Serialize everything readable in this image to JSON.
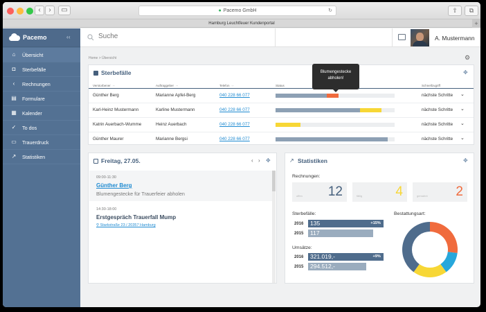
{
  "browser": {
    "url_title": "Pacemo GmbH",
    "tab_title": "Hamburg Leuchtfeuer Kundenportal",
    "back": "‹",
    "forward": "›",
    "reload": "↻",
    "new_tab": "+"
  },
  "sidebar": {
    "brand": "Pacemo",
    "collapse": "‹ ‹",
    "items": [
      {
        "label": "Übersicht",
        "icon": "home-icon",
        "glyph": "⌂"
      },
      {
        "label": "Sterbefälle",
        "icon": "person-icon",
        "glyph": "◘"
      },
      {
        "label": "Rechnungen",
        "icon": "chevron-left-icon",
        "glyph": "‹"
      },
      {
        "label": "Formulare",
        "icon": "form-icon",
        "glyph": "▤"
      },
      {
        "label": "Kalender",
        "icon": "calendar-icon",
        "glyph": "▦"
      },
      {
        "label": "To dos",
        "icon": "check-icon",
        "glyph": "✓"
      },
      {
        "label": "Trauerdruck",
        "icon": "printer-icon",
        "glyph": "▭"
      },
      {
        "label": "Statistiken",
        "icon": "trend-icon",
        "glyph": "↗"
      }
    ]
  },
  "header": {
    "search_placeholder": "Suche",
    "user_name": "A. Mustermann"
  },
  "breadcrumb": "Home  >  Übersicht",
  "sterbefaelle": {
    "title": "Sterbefälle",
    "columns": [
      "Verstorbener",
      "Auftraggeber",
      "Telefon",
      "Status",
      "Schnellzugriff"
    ],
    "sort_glyph": "◦◦",
    "rows": [
      {
        "deceased": "Günther Berg",
        "client": "Marianne Apfel-Berg",
        "phone": "040 228 66 077",
        "action": "nächste Schritte",
        "status": [
          {
            "color": "#8da0b4",
            "value": 0.43
          },
          {
            "color": "#f06b3d",
            "value": 0.1
          }
        ]
      },
      {
        "deceased": "Karl-Heinz Mustermann",
        "client": "Karline Mustermann",
        "phone": "040 228 66 077",
        "action": "nächste Schritte",
        "status": [
          {
            "color": "#8da0b4",
            "value": 0.71
          },
          {
            "color": "#f7d736",
            "value": 0.18
          }
        ]
      },
      {
        "deceased": "Katrin Auerbach-Wumme",
        "client": "Heinz Auerbach",
        "phone": "040 228 66 077",
        "action": "nächste Schritte",
        "status": [
          {
            "color": "#f7d736",
            "value": 0.21
          }
        ]
      },
      {
        "deceased": "Günther Maurer",
        "client": "Marianne Bergsi",
        "phone": "040 228 66 077",
        "action": "nächste Schritte",
        "status": [
          {
            "color": "#8da0b4",
            "value": 0.94
          }
        ]
      }
    ],
    "tooltip": {
      "line1": "Blumengestecke",
      "line2": "abholen!"
    }
  },
  "calendar": {
    "title": "Freitag, 27.05.",
    "prev": "‹",
    "next": "›",
    "events": [
      {
        "time": "09:00-11:30",
        "title": "Günther Berg",
        "desc": "Blumengestecke für Trauerfeier abholen"
      },
      {
        "time": "14:30-18:00",
        "title": "Erstgespräch Trauerfall Mump",
        "location": "Starkstraße 23 / 20357 Hamburg"
      }
    ]
  },
  "statistiken": {
    "title": "Statistiken",
    "rechnungen_label": "Rechnungen:",
    "boxes": [
      {
        "label": "offen",
        "value": "12",
        "color": "#46607d"
      },
      {
        "label": "fällig",
        "value": "4",
        "color": "#f7d736"
      },
      {
        "label": "gemahnt",
        "value": "2",
        "color": "#f06b3d"
      }
    ],
    "sterbefaelle_label": "Sterbefälle:",
    "sterbefaelle": [
      {
        "year": "2016",
        "value": "135",
        "change": "+15%",
        "fraction": 0.99,
        "color": "#4f6c8c"
      },
      {
        "year": "2015",
        "value": "117",
        "change": "",
        "fraction": 0.85,
        "color": "#9aacbe"
      }
    ],
    "umsaetze_label": "Umsätze:",
    "umsaetze": [
      {
        "year": "2016",
        "value": "321.019,-",
        "change": "+9%",
        "fraction": 0.99,
        "color": "#4f6c8c"
      },
      {
        "year": "2015",
        "value": "294.512,-",
        "change": "",
        "fraction": 0.76,
        "color": "#9aacbe"
      }
    ],
    "bestattungsart_label": "Bestattungsart:",
    "donut": [
      {
        "color": "#f06b3d",
        "value": 0.27
      },
      {
        "color": "#27a7db",
        "value": 0.13
      },
      {
        "color": "#f7d736",
        "value": 0.2
      },
      {
        "color": "#4f6c8c",
        "value": 0.4
      }
    ]
  }
}
